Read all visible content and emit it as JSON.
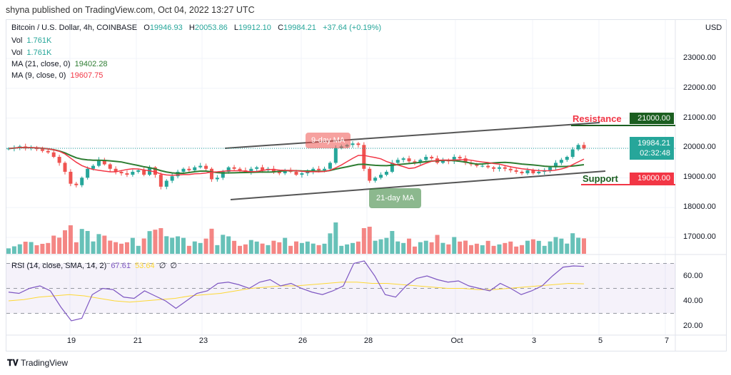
{
  "header": {
    "published": "shyna published on TradingView.com, Oct 04, 2022 13:27 UTC"
  },
  "legend": {
    "symbol": "Bitcoin / U.S. Dollar, 4h, COINBASE",
    "o_label": "O",
    "o": "19946.93",
    "h_label": "H",
    "h": "20053.86",
    "l_label": "L",
    "l": "19912.10",
    "c_label": "C",
    "c": "19984.21",
    "change": "+37.64 (+0.19%)",
    "vol1_label": "Vol",
    "vol1": "1.761K",
    "vol2_label": "Vol",
    "vol2": "1.761K",
    "ma21_label": "MA (21, close, 0)",
    "ma21": "19402.28",
    "ma9_label": "MA (9, close, 0)",
    "ma9": "19607.75",
    "rsi_label": "RSI (14, close, SMA, 14, 2)",
    "rsi": "67.61",
    "rsi_sma": "53.64",
    "rsi_x1": "∅",
    "rsi_x2": "∅"
  },
  "price_axis": {
    "currency": "USD",
    "ticks": [
      "23000.00",
      "22000.00",
      "21000.00",
      "20000.00",
      "19000.00",
      "18000.00",
      "17000.00"
    ]
  },
  "tags": {
    "resistance": "21000.00",
    "last": "19984.21",
    "countdown": "02:32:48",
    "support": "19000.00"
  },
  "annotations": {
    "resistance": "Resistance",
    "support": "Support",
    "ma9": "9-day MA",
    "ma21": "21-day MA"
  },
  "rsi_axis": {
    "ticks": [
      "60.00",
      "40.00",
      "20.00"
    ]
  },
  "time_axis": [
    "19",
    "21",
    "23",
    "26",
    "28",
    "Oct",
    "3",
    "5",
    "7"
  ],
  "brand": "TradingView",
  "colors": {
    "up": "#26a69a",
    "down": "#ef5350",
    "ma9": "#f23645",
    "ma21": "#2e7d32",
    "rsi": "#7e57c2",
    "rsi_sma": "#fdd835",
    "resistance": "#1b5e20",
    "support": "#f23645"
  },
  "chart_data": {
    "type": "candlestick",
    "title": "Bitcoin / U.S. Dollar, 4h, COINBASE",
    "ylim": [
      16500,
      23500
    ],
    "closes": [
      19980,
      20010,
      20050,
      19990,
      20020,
      19960,
      19900,
      19850,
      19700,
      19500,
      19200,
      18800,
      18750,
      19000,
      19300,
      19400,
      19600,
      19450,
      19300,
      19200,
      19150,
      19100,
      19200,
      19250,
      19100,
      19350,
      19100,
      18700,
      18900,
      19050,
      19200,
      19300,
      19250,
      19350,
      19400,
      19300,
      18950,
      19000,
      19200,
      19350,
      19300,
      19250,
      19200,
      19300,
      19350,
      19250,
      19300,
      19200,
      19150,
      19250,
      19200,
      19100,
      19150,
      19200,
      19300,
      19250,
      19300,
      19500,
      20000,
      20050,
      20100,
      20150,
      20100,
      19300,
      18900,
      19000,
      19100,
      19200,
      19500,
      19600,
      19650,
      19550,
      19500,
      19600,
      19700,
      19650,
      19500,
      19600,
      19550,
      19700,
      19650,
      19500,
      19450,
      19400,
      19400,
      19350,
      19300,
      19350,
      19300,
      19250,
      19200,
      19150,
      19250,
      19150,
      19200,
      19250,
      19350,
      19500,
      19600,
      19700,
      19950,
      20100,
      19984
    ],
    "resistance": 21000,
    "support": 19000,
    "rsi": {
      "ylim": [
        10,
        80
      ],
      "band": [
        30,
        70
      ],
      "values": [
        47,
        46,
        50,
        52,
        48,
        35,
        24,
        26,
        45,
        50,
        49,
        43,
        42,
        48,
        44,
        40,
        34,
        40,
        46,
        48,
        54,
        55,
        53,
        50,
        55,
        57,
        52,
        54,
        50,
        47,
        45,
        48,
        52,
        70,
        72,
        60,
        45,
        43,
        52,
        58,
        60,
        57,
        55,
        56,
        52,
        50,
        48,
        54,
        50,
        45,
        48,
        52,
        60,
        67,
        68,
        67.61
      ],
      "sma": [
        40,
        41,
        43,
        44,
        45,
        44,
        42,
        40,
        39,
        40,
        41,
        42,
        44,
        45,
        46,
        48,
        50,
        51,
        52,
        52,
        53,
        54,
        55,
        55,
        54,
        54,
        53,
        52,
        51,
        50,
        50,
        49,
        49,
        50,
        51,
        52,
        53,
        54,
        53.64
      ]
    }
  }
}
